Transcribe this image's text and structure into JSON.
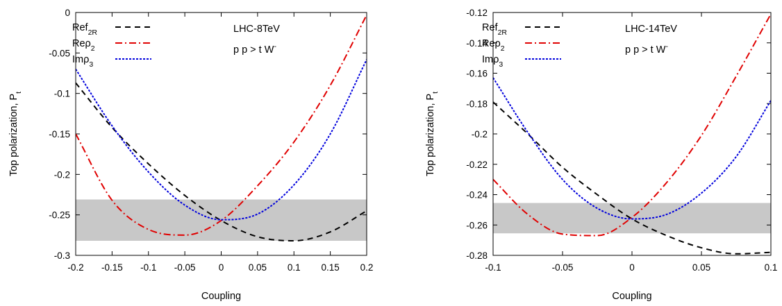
{
  "chart_data": [
    {
      "type": "line",
      "xlabel": "Coupling",
      "ylabel": "Top polarization, P",
      "ylabel_sub": "t",
      "xlim": [
        -0.2,
        0.2
      ],
      "ylim": [
        -0.3,
        0
      ],
      "xticks": [
        -0.2,
        -0.15,
        -0.1,
        -0.05,
        0,
        0.05,
        0.1,
        0.15,
        0.2
      ],
      "xtick_labels": [
        "-0.2",
        "-0.15",
        "-0.1",
        "-0.05",
        "0",
        "0.05",
        "0.1",
        "0.15",
        "0.2"
      ],
      "yticks": [
        0,
        -0.05,
        -0.1,
        -0.15,
        -0.2,
        -0.25,
        -0.3
      ],
      "ytick_labels": [
        "0",
        "-0.05",
        "-0.1",
        "-0.15",
        "-0.2",
        "-0.25",
        "-0.3"
      ],
      "band": [
        -0.282,
        -0.231
      ],
      "annotation": {
        "line1": "LHC-8TeV",
        "line2": "p p > t W",
        "line2_sup": "-"
      },
      "legend": "top-left",
      "series": [
        {
          "name": "Ref",
          "name_sub": "2R",
          "color": "#000000",
          "dash": "8,6",
          "x": [
            -0.2,
            -0.15,
            -0.1,
            -0.05,
            0,
            0.05,
            0.1,
            0.15,
            0.2
          ],
          "y": [
            -0.087,
            -0.142,
            -0.187,
            -0.226,
            -0.257,
            -0.277,
            -0.282,
            -0.271,
            -0.245
          ]
        },
        {
          "name": "Reρ",
          "name_sub": "2",
          "color": "#e00000",
          "dash": "10,4,2,4",
          "x": [
            -0.2,
            -0.15,
            -0.1,
            -0.05,
            0,
            0.05,
            0.1,
            0.15,
            0.2
          ],
          "y": [
            -0.15,
            -0.232,
            -0.268,
            -0.275,
            -0.257,
            -0.214,
            -0.16,
            -0.09,
            -0.003
          ]
        },
        {
          "name": "Imρ",
          "name_sub": "3",
          "color": "#0000dd",
          "dash": "3,2",
          "x": [
            -0.2,
            -0.15,
            -0.1,
            -0.05,
            0,
            0.05,
            0.1,
            0.15,
            0.2
          ],
          "y": [
            -0.07,
            -0.14,
            -0.197,
            -0.238,
            -0.256,
            -0.249,
            -0.213,
            -0.15,
            -0.058
          ]
        }
      ]
    },
    {
      "type": "line",
      "xlabel": "Coupling",
      "ylabel": "Top polarization, P",
      "ylabel_sub": "t",
      "xlim": [
        -0.1,
        0.1
      ],
      "ylim": [
        -0.28,
        -0.12
      ],
      "xticks": [
        -0.1,
        -0.05,
        0,
        0.05,
        0.1
      ],
      "xtick_labels": [
        "-0.1",
        "-0.05",
        "0",
        "0.05",
        "0.1"
      ],
      "yticks": [
        -0.12,
        -0.14,
        -0.16,
        -0.18,
        -0.2,
        -0.22,
        -0.24,
        -0.26,
        -0.28
      ],
      "ytick_labels": [
        "-0.12",
        "-0.14",
        "-0.16",
        "-0.18",
        "-0.2",
        "-0.22",
        "-0.24",
        "-0.26",
        "-0.28"
      ],
      "band": [
        -0.2655,
        -0.2455
      ],
      "annotation": {
        "line1": "LHC-14TeV",
        "line2": "p p > t W",
        "line2_sup": "-"
      },
      "legend": "top-left",
      "series": [
        {
          "name": "Ref",
          "name_sub": "2R",
          "color": "#000000",
          "dash": "8,6",
          "x": [
            -0.1,
            -0.075,
            -0.05,
            -0.025,
            0,
            0.025,
            0.05,
            0.075,
            0.1
          ],
          "y": [
            -0.179,
            -0.2,
            -0.222,
            -0.24,
            -0.256,
            -0.267,
            -0.275,
            -0.279,
            -0.278
          ]
        },
        {
          "name": "Reρ",
          "name_sub": "2",
          "color": "#e00000",
          "dash": "10,4,2,4",
          "x": [
            -0.1,
            -0.075,
            -0.05,
            -0.025,
            0,
            0.025,
            0.05,
            0.075,
            0.1
          ],
          "y": [
            -0.23,
            -0.253,
            -0.266,
            -0.267,
            -0.255,
            -0.232,
            -0.201,
            -0.162,
            -0.121
          ]
        },
        {
          "name": "Imρ",
          "name_sub": "3",
          "color": "#0000dd",
          "dash": "3,2",
          "x": [
            -0.1,
            -0.075,
            -0.05,
            -0.025,
            0,
            0.025,
            0.05,
            0.075,
            0.1
          ],
          "y": [
            -0.163,
            -0.199,
            -0.23,
            -0.249,
            -0.256,
            -0.253,
            -0.239,
            -0.215,
            -0.178
          ]
        }
      ]
    }
  ]
}
